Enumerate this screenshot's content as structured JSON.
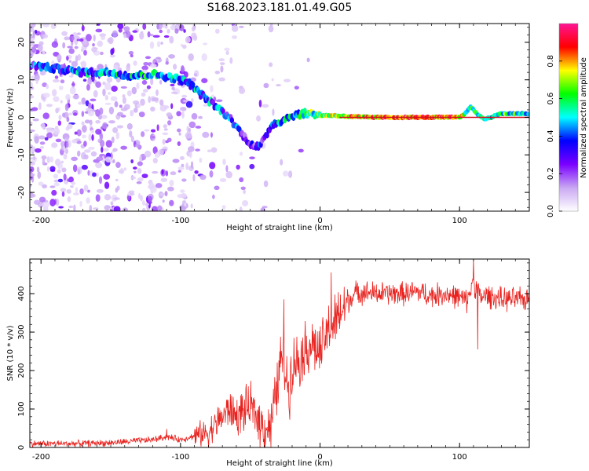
{
  "title": "S168.2023.181.01.49.G05",
  "chart_data": [
    {
      "type": "heatmap",
      "xlabel": "Height of straight line (km)",
      "ylabel": "Frequency (Hz)",
      "xlim": [
        -208,
        150
      ],
      "ylim": [
        -25,
        25
      ],
      "xticks": [
        -200,
        -100,
        0,
        100
      ],
      "yticks": [
        -20,
        -10,
        0,
        10,
        20
      ],
      "colorbar": {
        "label": "Normalized spectral amplitude",
        "ticks": [
          0.0,
          0.2,
          0.4,
          0.6,
          0.8
        ],
        "range": [
          0,
          1
        ],
        "colormap": [
          "#ffffff",
          "#c9a7f3",
          "#7a00ff",
          "#0000ff",
          "#00ffff",
          "#00ff00",
          "#ffff00",
          "#ff0000",
          "#ff1493"
        ]
      },
      "ridge": {
        "x": [
          -208,
          -190,
          -170,
          -150,
          -135,
          -120,
          -105,
          -95,
          -85,
          -75,
          -65,
          -57,
          -50,
          -44,
          -40,
          -35,
          -28,
          -20,
          -12,
          -5,
          0,
          10,
          20,
          40,
          60,
          80,
          95,
          100,
          104,
          108,
          112,
          118,
          130,
          150
        ],
        "y": [
          14,
          13,
          12,
          12,
          11,
          11.5,
          10.5,
          9.5,
          6,
          3,
          0,
          -4,
          -7,
          -8,
          -6,
          -2,
          -1,
          0.5,
          1,
          1,
          0.5,
          0.5,
          0.2,
          0,
          0,
          0,
          0,
          0,
          1,
          3,
          1,
          -0.5,
          1,
          1
        ],
        "amplitude": [
          0.35,
          0.35,
          0.4,
          0.45,
          0.5,
          0.5,
          0.45,
          0.45,
          0.4,
          0.4,
          0.35,
          0.3,
          0.3,
          0.3,
          0.35,
          0.4,
          0.45,
          0.5,
          0.55,
          0.6,
          0.65,
          0.7,
          0.75,
          0.8,
          0.85,
          0.85,
          0.85,
          0.8,
          0.6,
          0.5,
          0.55,
          0.6,
          0.55,
          0.55
        ]
      }
    },
    {
      "type": "line",
      "xlabel": "Height of straight line (km)",
      "ylabel": "SNR (10 * v/v)",
      "xlim": [
        -208,
        150
      ],
      "ylim": [
        0,
        490
      ],
      "xticks": [
        -200,
        -100,
        0,
        100
      ],
      "yticks": [
        0,
        100,
        200,
        300,
        400
      ],
      "color": "#e8231f",
      "series": [
        {
          "x": [
            -208,
            -180,
            -150,
            -120,
            -110,
            -100,
            -90,
            -80,
            -75,
            -70,
            -65,
            -60,
            -55,
            -50,
            -45,
            -40,
            -35,
            -30,
            -28,
            -25,
            -22,
            -20,
            -15,
            -10,
            -5,
            0,
            5,
            10,
            15,
            20,
            25,
            30,
            40,
            50,
            60,
            70,
            80,
            90,
            100,
            105,
            110,
            115,
            120,
            130,
            140,
            150
          ],
          "y": [
            10,
            10,
            12,
            20,
            28,
            20,
            30,
            40,
            60,
            80,
            100,
            80,
            95,
            105,
            80,
            50,
            60,
            170,
            240,
            200,
            150,
            220,
            230,
            260,
            270,
            240,
            300,
            320,
            350,
            380,
            400,
            405,
            400,
            400,
            400,
            405,
            395,
            400,
            390,
            380,
            430,
            390,
            395,
            385,
            385,
            385
          ]
        }
      ],
      "annotations": [
        {
          "x": -110,
          "y": 48
        },
        {
          "x": -26,
          "y": 385
        },
        {
          "x": 8,
          "y": 455
        },
        {
          "x": 110,
          "y": 490
        },
        {
          "x": 113,
          "y": 255
        }
      ]
    }
  ]
}
